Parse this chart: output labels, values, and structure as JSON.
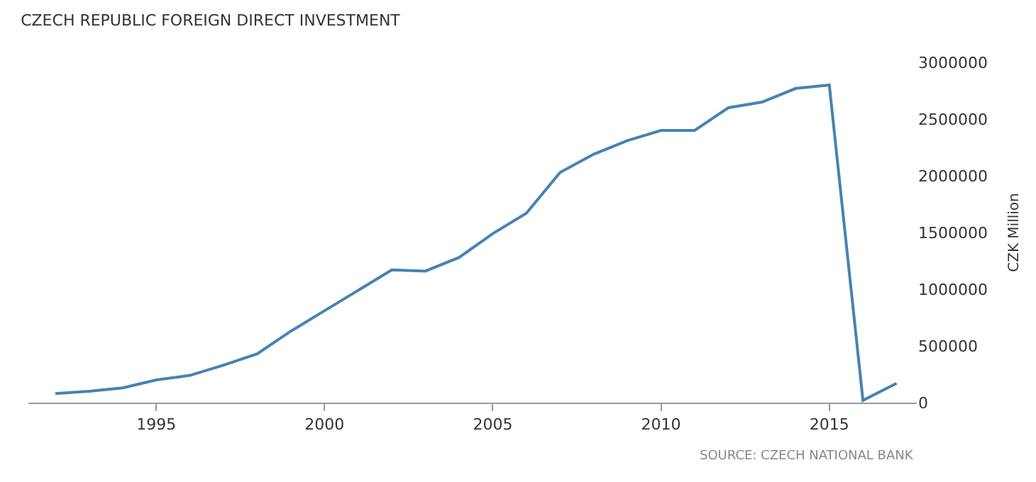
{
  "chart_data": {
    "type": "line",
    "title": "CZECH REPUBLIC FOREIGN DIRECT INVESTMENT",
    "ylabel": "CZK Million",
    "annotations": [
      "SOURCE: CZECH NATIONAL BANK"
    ],
    "x": [
      1992,
      1993,
      1994,
      1995,
      1996,
      1997,
      1998,
      1999,
      2000,
      2001,
      2002,
      2003,
      2004,
      2005,
      2006,
      2007,
      2008,
      2009,
      2010,
      2011,
      2012,
      2013,
      2014,
      2015,
      2016,
      2017
    ],
    "series": [
      {
        "color": "#4682b4",
        "values": [
          80000,
          100000,
          130000,
          200000,
          240000,
          330000,
          430000,
          630000,
          810000,
          990000,
          1170000,
          1160000,
          1280000,
          1490000,
          1670000,
          2030000,
          2190000,
          2310000,
          2400000,
          2400000,
          2600000,
          2650000,
          2770000,
          2800000,
          20000,
          170000
        ]
      }
    ],
    "xlim": [
      1991.2,
      2017.6
    ],
    "xticks": [
      1995,
      2000,
      2005,
      2010,
      2015
    ],
    "ylim": [
      0,
      3000000
    ],
    "yticks": [
      0,
      500000,
      1000000,
      1500000,
      2000000,
      2500000,
      3000000
    ],
    "grid": false,
    "legend": false,
    "marker": "none",
    "line_style": "solid"
  }
}
